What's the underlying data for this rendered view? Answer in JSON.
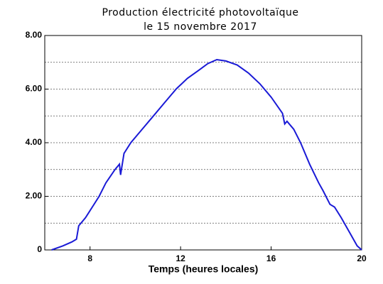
{
  "chart_data": {
    "type": "line",
    "title": "Production électricité photovoltaïque",
    "subtitle": "le 15 novembre 2017",
    "x_label": "Temps (heures locales)",
    "series": [
      {
        "color": "#1a1ad6",
        "x": [
          6.3,
          6.8,
          7.2,
          7.4,
          7.5,
          7.8,
          8.1,
          8.4,
          8.7,
          9.1,
          9.3,
          9.35,
          9.5,
          9.8,
          10.3,
          10.8,
          11.3,
          11.8,
          12.3,
          12.8,
          13.2,
          13.6,
          14.0,
          14.5,
          15.0,
          15.5,
          16.0,
          16.5,
          16.6,
          16.7,
          17.0,
          17.3,
          17.7,
          18.1,
          18.3,
          18.6,
          18.8,
          19.1,
          19.5,
          19.8,
          20.0
        ],
        "values": [
          0,
          0.15,
          0.3,
          0.4,
          0.9,
          1.2,
          1.6,
          2.0,
          2.5,
          3.0,
          3.2,
          2.8,
          3.6,
          4.0,
          4.5,
          5.0,
          5.5,
          6.0,
          6.4,
          6.7,
          6.95,
          7.1,
          7.05,
          6.9,
          6.6,
          6.2,
          5.7,
          5.1,
          4.7,
          4.8,
          4.5,
          4.0,
          3.2,
          2.5,
          2.2,
          1.7,
          1.6,
          1.2,
          0.6,
          0.15,
          0
        ]
      }
    ],
    "xlim": [
      6,
      20
    ],
    "xticks": [
      8,
      12,
      16,
      20
    ],
    "ylim": [
      0,
      8
    ],
    "yticks": [
      0,
      {
        "value": 2,
        "label": "2.00"
      },
      {
        "value": 4,
        "label": "4.00"
      },
      {
        "value": 6,
        "label": "6.00"
      },
      {
        "value": 8,
        "label": "8.00"
      }
    ],
    "yminorticks": [
      1,
      3,
      5,
      7
    ],
    "grid": true
  }
}
